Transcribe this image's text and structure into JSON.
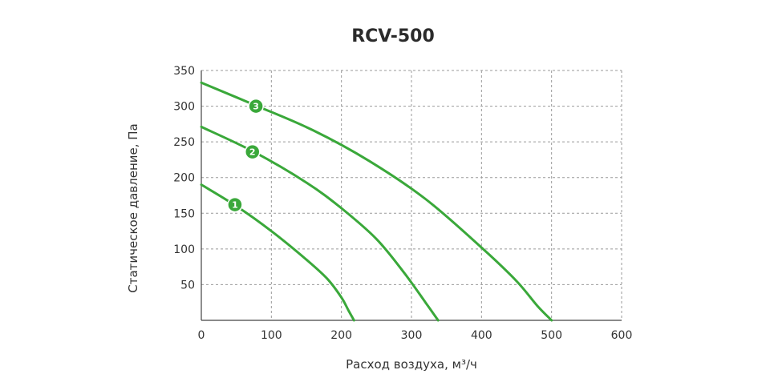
{
  "chart_data": {
    "type": "line",
    "title": "RCV-500",
    "xlabel": "Расход воздуха, м³/ч",
    "ylabel": "Статическое давление, Па",
    "xlim": [
      0,
      600
    ],
    "ylim": [
      0,
      350
    ],
    "xticks": [
      0,
      100,
      200,
      300,
      400,
      500,
      600
    ],
    "xtick_labels": [
      "0",
      "100",
      "200",
      "300",
      "400",
      "500",
      "600"
    ],
    "yticks": [
      50,
      100,
      150,
      200,
      250,
      300,
      350
    ],
    "ytick_labels": [
      "50",
      "100",
      "150",
      "200",
      "250",
      "300",
      "350"
    ],
    "grid": true,
    "line_color": "#3aa83a",
    "grid_color": "#9a9a9a",
    "series": [
      {
        "name": "1",
        "points": [
          [
            0,
            190
          ],
          [
            50,
            160
          ],
          [
            100,
            125
          ],
          [
            150,
            85
          ],
          [
            180,
            58
          ],
          [
            200,
            32
          ],
          [
            210,
            14
          ],
          [
            218,
            0
          ]
        ],
        "marker_at": [
          48,
          162
        ]
      },
      {
        "name": "2",
        "points": [
          [
            0,
            271
          ],
          [
            75,
            236
          ],
          [
            150,
            193
          ],
          [
            200,
            157
          ],
          [
            250,
            114
          ],
          [
            290,
            66
          ],
          [
            320,
            25
          ],
          [
            338,
            0
          ]
        ],
        "marker_at": [
          73,
          236
        ]
      },
      {
        "name": "3",
        "points": [
          [
            0,
            333
          ],
          [
            80,
            300
          ],
          [
            160,
            266
          ],
          [
            240,
            223
          ],
          [
            320,
            170
          ],
          [
            400,
            102
          ],
          [
            450,
            55
          ],
          [
            480,
            20
          ],
          [
            500,
            0
          ]
        ],
        "marker_at": [
          78,
          300
        ]
      }
    ]
  }
}
